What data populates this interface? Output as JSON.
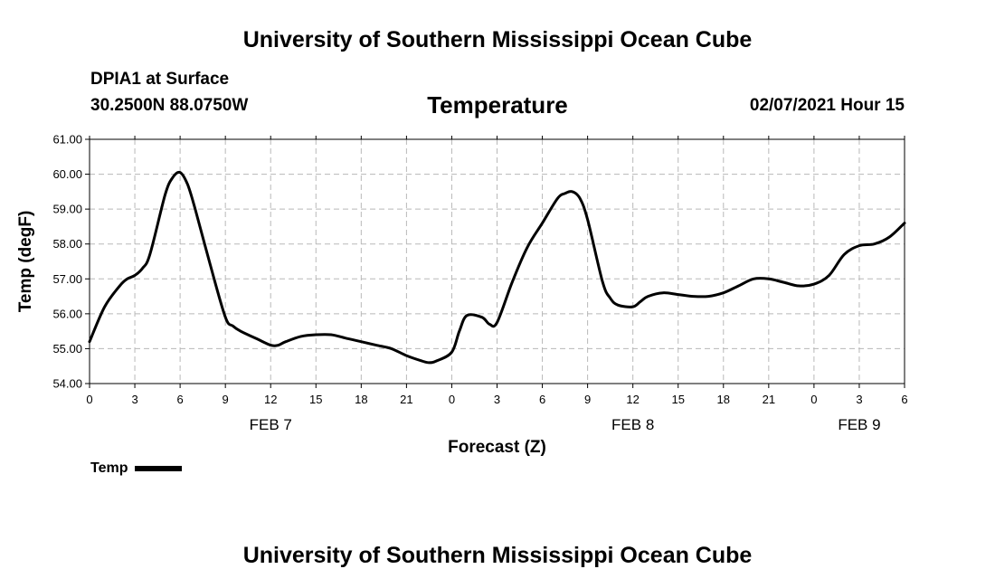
{
  "header": {
    "title": "University of Southern Mississippi Ocean Cube",
    "footer_title": "University of Southern Mississippi Ocean Cube",
    "station": "DPIA1 at Surface",
    "coords": "30.2500N 88.0750W",
    "plot_title": "Temperature",
    "forecast_time": "02/07/2021 Hour 15"
  },
  "legend": {
    "label": "Temp",
    "color": "#000000"
  },
  "chart_data": {
    "type": "line",
    "xlabel": "Forecast (Z)",
    "ylabel": "Temp (degF)",
    "ylim": [
      54.0,
      61.0
    ],
    "yticks": [
      "54.00",
      "55.00",
      "56.00",
      "57.00",
      "58.00",
      "59.00",
      "60.00",
      "61.00"
    ],
    "xlim": [
      "02/07/2021 00Z",
      "02/09/2021 06Z"
    ],
    "xticks": [
      "0",
      "3",
      "6",
      "9",
      "12",
      "15",
      "18",
      "21",
      "0",
      "3",
      "6",
      "9",
      "12",
      "15",
      "18",
      "21",
      "0",
      "3",
      "6"
    ],
    "day_labels": [
      {
        "label": "FEB 7",
        "at": "02/07/2021 12Z"
      },
      {
        "label": "FEB 8",
        "at": "02/08/2021 12Z"
      },
      {
        "label": "FEB 9",
        "at": "02/09/2021 03Z"
      }
    ],
    "grid": true,
    "series": [
      {
        "name": "Temp",
        "color": "#000000",
        "points": [
          [
            "02/07/2021 00:00",
            55.2
          ],
          [
            "02/07/2021 01:00",
            56.2
          ],
          [
            "02/07/2021 02:00",
            56.8
          ],
          [
            "02/07/2021 02:30",
            57.0
          ],
          [
            "02/07/2021 03:00",
            57.1
          ],
          [
            "02/07/2021 03:30",
            57.3
          ],
          [
            "02/07/2021 04:00",
            57.7
          ],
          [
            "02/07/2021 05:00",
            59.4
          ],
          [
            "02/07/2021 05:30",
            59.9
          ],
          [
            "02/07/2021 06:00",
            60.05
          ],
          [
            "02/07/2021 06:30",
            59.7
          ],
          [
            "02/07/2021 07:00",
            59.0
          ],
          [
            "02/07/2021 08:00",
            57.4
          ],
          [
            "02/07/2021 09:00",
            55.9
          ],
          [
            "02/07/2021 09:30",
            55.65
          ],
          [
            "02/07/2021 10:00",
            55.5
          ],
          [
            "02/07/2021 11:00",
            55.3
          ],
          [
            "02/07/2021 12:00",
            55.1
          ],
          [
            "02/07/2021 12:30",
            55.1
          ],
          [
            "02/07/2021 13:00",
            55.2
          ],
          [
            "02/07/2021 14:00",
            55.35
          ],
          [
            "02/07/2021 15:00",
            55.4
          ],
          [
            "02/07/2021 16:00",
            55.4
          ],
          [
            "02/07/2021 17:00",
            55.3
          ],
          [
            "02/07/2021 18:00",
            55.2
          ],
          [
            "02/07/2021 19:00",
            55.1
          ],
          [
            "02/07/2021 20:00",
            55.0
          ],
          [
            "02/07/2021 21:00",
            54.8
          ],
          [
            "02/07/2021 22:00",
            54.65
          ],
          [
            "02/07/2021 22:30",
            54.6
          ],
          [
            "02/07/2021 23:00",
            54.65
          ],
          [
            "02/08/2021 00:00",
            54.9
          ],
          [
            "02/08/2021 00:30",
            55.5
          ],
          [
            "02/08/2021 01:00",
            55.95
          ],
          [
            "02/08/2021 02:00",
            55.9
          ],
          [
            "02/08/2021 02:30",
            55.7
          ],
          [
            "02/08/2021 03:00",
            55.75
          ],
          [
            "02/08/2021 04:00",
            56.9
          ],
          [
            "02/08/2021 05:00",
            57.9
          ],
          [
            "02/08/2021 06:00",
            58.6
          ],
          [
            "02/08/2021 07:00",
            59.3
          ],
          [
            "02/08/2021 07:30",
            59.45
          ],
          [
            "02/08/2021 08:00",
            59.5
          ],
          [
            "02/08/2021 08:30",
            59.3
          ],
          [
            "02/08/2021 09:00",
            58.7
          ],
          [
            "02/08/2021 10:00",
            56.9
          ],
          [
            "02/08/2021 10:30",
            56.45
          ],
          [
            "02/08/2021 11:00",
            56.25
          ],
          [
            "02/08/2021 12:00",
            56.2
          ],
          [
            "02/08/2021 12:30",
            56.35
          ],
          [
            "02/08/2021 13:00",
            56.5
          ],
          [
            "02/08/2021 14:00",
            56.6
          ],
          [
            "02/08/2021 15:00",
            56.55
          ],
          [
            "02/08/2021 16:00",
            56.5
          ],
          [
            "02/08/2021 17:00",
            56.5
          ],
          [
            "02/08/2021 18:00",
            56.6
          ],
          [
            "02/08/2021 19:00",
            56.8
          ],
          [
            "02/08/2021 20:00",
            57.0
          ],
          [
            "02/08/2021 21:00",
            57.0
          ],
          [
            "02/08/2021 22:00",
            56.9
          ],
          [
            "02/08/2021 23:00",
            56.8
          ],
          [
            "02/09/2021 00:00",
            56.85
          ],
          [
            "02/09/2021 01:00",
            57.1
          ],
          [
            "02/09/2021 02:00",
            57.7
          ],
          [
            "02/09/2021 03:00",
            57.95
          ],
          [
            "02/09/2021 04:00",
            58.0
          ],
          [
            "02/09/2021 05:00",
            58.2
          ],
          [
            "02/09/2021 06:00",
            58.6
          ]
        ]
      }
    ]
  }
}
